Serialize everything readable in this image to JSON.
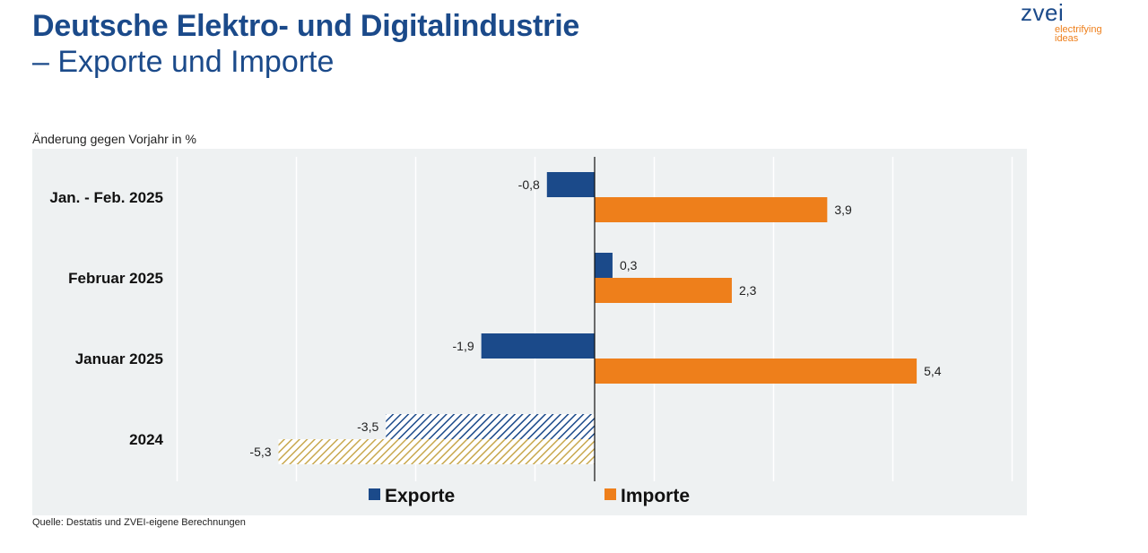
{
  "header": {
    "title": "Deutsche Elektro- und Digitalindustrie",
    "subtitle": "– Exporte und Importe"
  },
  "logo": {
    "word": "zvei",
    "tagline_1": "electrifying",
    "tagline_2": "ideas"
  },
  "unit_label": "Änderung gegen Vorjahr in %",
  "source": "Quelle: Destatis und ZVEI-eigene Berechnungen",
  "colors": {
    "exporte": "#1b4a8a",
    "importe": "#ee7f1b",
    "exporte_2024_hatch": "#1b4a8a",
    "importe_2024_hatch": "#c8a84e",
    "plot_background": "#eef1f2",
    "title": "#1b4a8a"
  },
  "chart_data": {
    "type": "bar",
    "orientation": "horizontal",
    "categories": [
      "Jan. - Feb. 2025",
      "Februar 2025",
      "Januar 2025",
      "2024"
    ],
    "series": [
      {
        "name": "Exporte",
        "values": [
          -0.8,
          0.3,
          -1.9,
          -3.5
        ],
        "labels": [
          "-0,8",
          "0,3",
          "-1,9",
          "-3,5"
        ]
      },
      {
        "name": "Importe",
        "values": [
          3.9,
          2.3,
          5.4,
          -5.3
        ],
        "labels": [
          "3,9",
          "2,3",
          "5,4",
          "-5,3"
        ]
      }
    ],
    "hatched_categories": [
      "2024"
    ],
    "xlim": [
      -7,
      7
    ],
    "grid": true,
    "legend_position": "bottom",
    "xlabel": "",
    "ylabel": ""
  }
}
